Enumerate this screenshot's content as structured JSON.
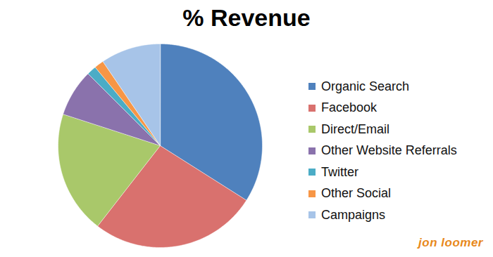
{
  "chart_data": {
    "type": "pie",
    "title": "% Revenue",
    "categories": [
      "Organic Search",
      "Facebook",
      "Direct/Email",
      "Other Website Referrals",
      "Twitter",
      "Other Social",
      "Campaigns"
    ],
    "values": [
      34,
      26.5,
      19.5,
      7.5,
      1.5,
      1.5,
      9.5
    ],
    "colors": [
      "#4f81bd",
      "#d9716e",
      "#a9c86a",
      "#8a72ac",
      "#4bacc6",
      "#f79646",
      "#a7c4e8"
    ],
    "legend": "right",
    "annotations": [
      "jon loomer"
    ]
  }
}
